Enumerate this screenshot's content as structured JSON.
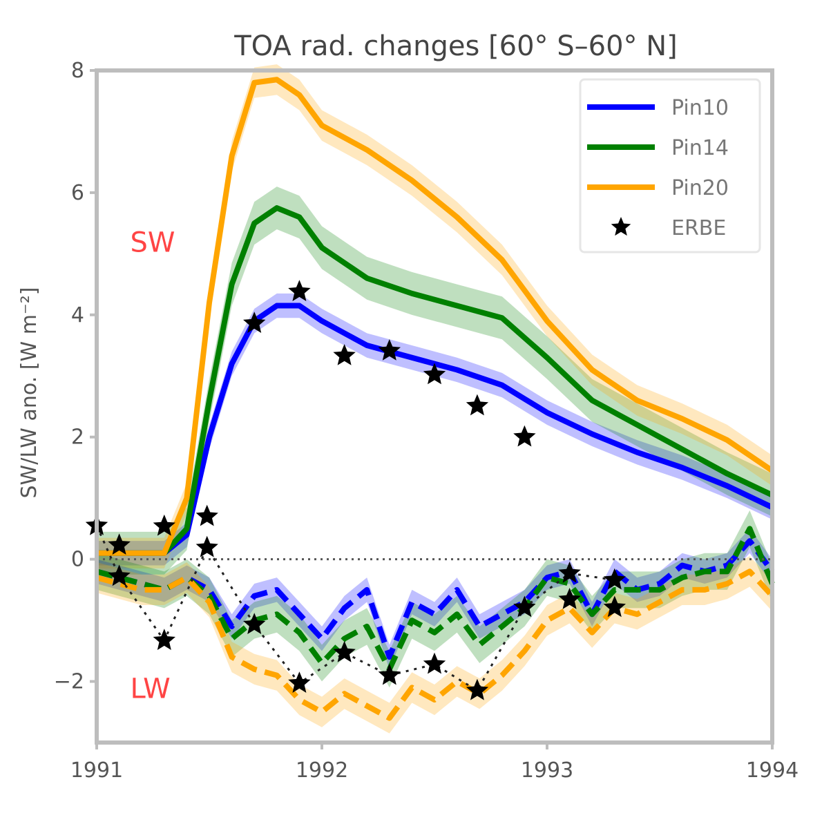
{
  "chart_data": {
    "type": "line",
    "title": "TOA rad. changes [60° S–60° N]",
    "xlabel": "",
    "ylabel": "SW/LW ano. [W m⁻²]",
    "xlim": [
      1991,
      1994
    ],
    "ylim": [
      -3,
      8
    ],
    "xticks": [
      1991,
      1992,
      1993,
      1994
    ],
    "xtick_labels": [
      "1991",
      "1992",
      "1993",
      "1994"
    ],
    "yticks": [
      -2,
      0,
      2,
      4,
      6,
      8
    ],
    "ytick_labels": [
      "−2",
      "0",
      "2",
      "4",
      "6",
      "8"
    ],
    "grid": false,
    "legend": {
      "position": "top-right",
      "entries": [
        "Pin10",
        "Pin14",
        "Pin20",
        "ERBE"
      ]
    },
    "annotations": [
      {
        "text": "SW",
        "x": 1991.21,
        "y": 5.2,
        "color": "#ff4444"
      },
      {
        "text": "LW",
        "x": 1991.21,
        "y": -2.1,
        "color": "#ff4444"
      }
    ],
    "zero_line": {
      "y": 0,
      "style": "dotted"
    },
    "series": [
      {
        "name": "Pin10",
        "group": "SW",
        "color": "#0000ff",
        "style": "solid",
        "x": [
          1991.0,
          1991.15,
          1991.3,
          1991.4,
          1991.5,
          1991.6,
          1991.7,
          1991.8,
          1991.9,
          1992.0,
          1992.2,
          1992.4,
          1992.6,
          1992.8,
          1993.0,
          1993.2,
          1993.4,
          1993.6,
          1993.8,
          1994.0
        ],
        "values": [
          0.1,
          0.1,
          0.1,
          0.4,
          2.0,
          3.2,
          3.9,
          4.15,
          4.15,
          3.9,
          3.5,
          3.3,
          3.1,
          2.85,
          2.4,
          2.05,
          1.75,
          1.5,
          1.2,
          0.85
        ],
        "band": 0.2
      },
      {
        "name": "Pin14",
        "group": "SW",
        "color": "#008000",
        "style": "solid",
        "x": [
          1991.0,
          1991.15,
          1991.3,
          1991.4,
          1991.5,
          1991.6,
          1991.7,
          1991.8,
          1991.9,
          1992.0,
          1992.2,
          1992.4,
          1992.6,
          1992.8,
          1993.0,
          1993.2,
          1993.4,
          1993.6,
          1993.8,
          1994.0
        ],
        "values": [
          0.1,
          0.1,
          0.1,
          0.5,
          2.6,
          4.5,
          5.5,
          5.75,
          5.6,
          5.1,
          4.6,
          4.35,
          4.15,
          3.95,
          3.3,
          2.6,
          2.2,
          1.8,
          1.4,
          1.05
        ],
        "band": 0.35
      },
      {
        "name": "Pin20",
        "group": "SW",
        "color": "#ffa500",
        "style": "solid",
        "x": [
          1991.0,
          1991.15,
          1991.3,
          1991.4,
          1991.5,
          1991.6,
          1991.7,
          1991.8,
          1991.9,
          1992.0,
          1992.2,
          1992.4,
          1992.6,
          1992.8,
          1993.0,
          1993.2,
          1993.4,
          1993.6,
          1993.8,
          1994.0
        ],
        "values": [
          0.1,
          0.1,
          0.1,
          1.0,
          4.2,
          6.6,
          7.8,
          7.85,
          7.6,
          7.1,
          6.7,
          6.2,
          5.6,
          4.9,
          3.9,
          3.1,
          2.6,
          2.3,
          1.95,
          1.45
        ],
        "band": 0.25
      },
      {
        "name": "Pin10 LW",
        "group": "LW",
        "color": "#0000ff",
        "style": "dashed",
        "x": [
          1991.0,
          1991.1,
          1991.2,
          1991.3,
          1991.4,
          1991.5,
          1991.6,
          1991.7,
          1991.8,
          1991.9,
          1992.0,
          1992.1,
          1992.2,
          1992.3,
          1992.4,
          1992.5,
          1992.6,
          1992.7,
          1992.8,
          1992.9,
          1993.0,
          1993.1,
          1993.2,
          1993.3,
          1993.4,
          1993.5,
          1993.6,
          1993.7,
          1993.8,
          1993.9,
          1994.0
        ],
        "values": [
          -0.2,
          -0.3,
          -0.4,
          -0.5,
          -0.3,
          -0.5,
          -1.1,
          -0.6,
          -0.5,
          -0.9,
          -1.3,
          -0.8,
          -0.5,
          -1.6,
          -0.7,
          -0.9,
          -0.5,
          -1.1,
          -0.9,
          -0.7,
          -0.3,
          -0.2,
          -0.9,
          -0.2,
          -0.5,
          -0.4,
          -0.1,
          -0.2,
          -0.1,
          0.3,
          -0.2
        ],
        "band": 0.2
      },
      {
        "name": "Pin14 LW",
        "group": "LW",
        "color": "#008000",
        "style": "dashed",
        "x": [
          1991.0,
          1991.1,
          1991.2,
          1991.3,
          1991.4,
          1991.5,
          1991.6,
          1991.7,
          1991.8,
          1991.9,
          1992.0,
          1992.1,
          1992.2,
          1992.3,
          1992.4,
          1992.5,
          1992.6,
          1992.7,
          1992.8,
          1992.9,
          1993.0,
          1993.1,
          1993.2,
          1993.3,
          1993.4,
          1993.5,
          1993.6,
          1993.7,
          1993.8,
          1993.9,
          1994.0
        ],
        "values": [
          -0.2,
          -0.3,
          -0.4,
          -0.5,
          -0.3,
          -0.6,
          -1.3,
          -1.0,
          -0.9,
          -1.2,
          -1.7,
          -1.3,
          -1.1,
          -1.8,
          -1.0,
          -1.2,
          -0.9,
          -1.4,
          -1.1,
          -0.8,
          -0.3,
          -0.4,
          -0.9,
          -0.5,
          -0.5,
          -0.5,
          -0.3,
          -0.2,
          -0.2,
          0.5,
          -0.4
        ],
        "band": 0.3
      },
      {
        "name": "Pin20 LW",
        "group": "LW",
        "color": "#ffa500",
        "style": "dashed",
        "x": [
          1991.0,
          1991.1,
          1991.2,
          1991.3,
          1991.4,
          1991.5,
          1991.6,
          1991.7,
          1991.8,
          1991.9,
          1992.0,
          1992.1,
          1992.2,
          1992.3,
          1992.4,
          1992.5,
          1992.6,
          1992.7,
          1992.8,
          1992.9,
          1993.0,
          1993.1,
          1993.2,
          1993.3,
          1993.4,
          1993.5,
          1993.6,
          1993.7,
          1993.8,
          1993.9,
          1994.0
        ],
        "values": [
          -0.3,
          -0.4,
          -0.5,
          -0.5,
          -0.3,
          -0.7,
          -1.6,
          -1.8,
          -1.9,
          -2.3,
          -2.5,
          -2.2,
          -2.4,
          -2.6,
          -2.1,
          -2.3,
          -2.0,
          -2.2,
          -1.9,
          -1.5,
          -1.0,
          -0.8,
          -1.2,
          -0.8,
          -0.9,
          -0.7,
          -0.5,
          -0.5,
          -0.4,
          -0.2,
          -0.6
        ],
        "band": 0.25
      },
      {
        "name": "ERBE SW",
        "group": "SW",
        "color": "#000000",
        "style": "markers",
        "x": [
          1991.1,
          1991.3,
          1991.49,
          1991.7,
          1991.9,
          1992.1,
          1992.3,
          1992.5,
          1992.69,
          1992.9
        ],
        "values": [
          0.23,
          0.54,
          0.7,
          3.86,
          4.38,
          3.33,
          3.41,
          3.02,
          2.51,
          2.0
        ]
      },
      {
        "name": "ERBE LW",
        "group": "LW",
        "color": "#000000",
        "style": "markers-dashed",
        "x": [
          1991.0,
          1991.1,
          1991.3,
          1991.49,
          1991.7,
          1991.9,
          1992.1,
          1992.3,
          1992.5,
          1992.69,
          1992.9,
          1993.1,
          1993.3
        ],
        "values": [
          0.55,
          -0.28,
          -1.33,
          0.19,
          -1.07,
          -2.03,
          -1.53,
          -1.9,
          -1.72,
          -2.15,
          -0.79,
          -0.23,
          -0.34
        ]
      },
      {
        "name": "ERBE extra",
        "group": "LW",
        "color": "#000000",
        "style": "markers",
        "x": [
          1993.1,
          1993.3
        ],
        "values": [
          -0.66,
          -0.79
        ]
      }
    ]
  }
}
